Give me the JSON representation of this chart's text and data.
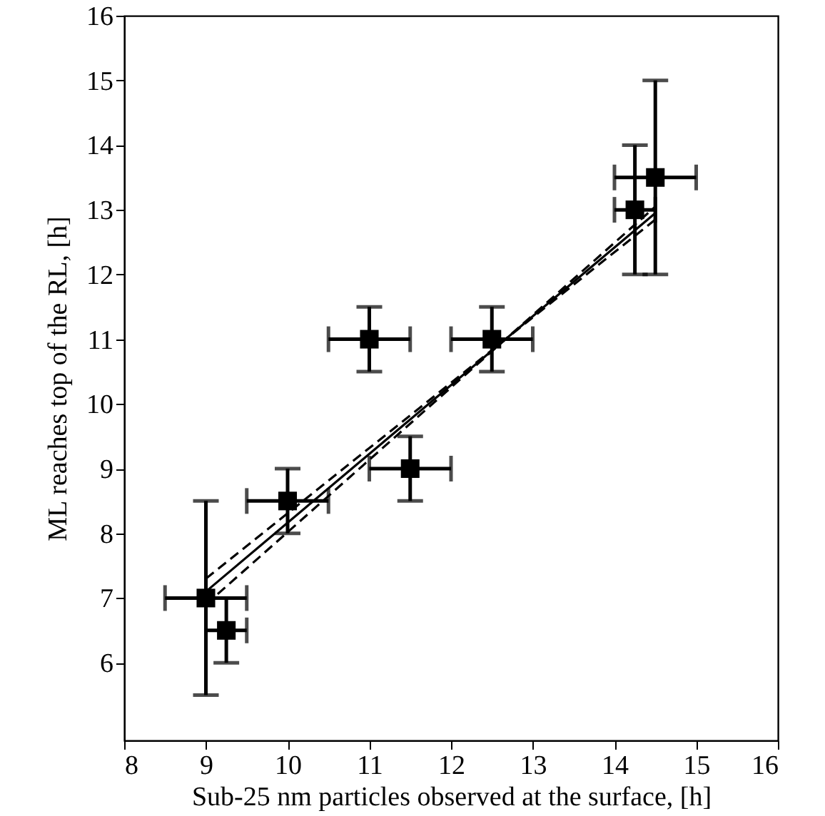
{
  "chart_data": {
    "type": "scatter",
    "xlabel": "Sub-25 nm particles observed at the surface, [h]",
    "ylabel": "ML reaches top of the RL, [h]",
    "xlim": [
      8,
      16
    ],
    "ylim": [
      4.8,
      16
    ],
    "xticks": [
      8,
      9,
      10,
      11,
      12,
      13,
      14,
      15,
      16
    ],
    "yticks": [
      6,
      7,
      8,
      9,
      10,
      11,
      12,
      13,
      14,
      15,
      16
    ],
    "grid": false,
    "series": [
      {
        "type": "scatter",
        "color": "#000000",
        "marker": "square",
        "x": [
          9,
          9.25,
          10,
          11,
          11.5,
          12.5,
          14.25,
          14.5
        ],
        "values": [
          7,
          6.5,
          8.5,
          11,
          9,
          11,
          13,
          13.5
        ],
        "errors": [
          1.5,
          0.5,
          0.5,
          0.5,
          0.5,
          0.5,
          1,
          1.5
        ],
        "xerrors": [
          0.5,
          0.25,
          0.5,
          0.5,
          0.5,
          0.5,
          0.25,
          0.5
        ]
      },
      {
        "type": "line",
        "color": "#000000",
        "line_style": "solid",
        "x": [
          9,
          14.5
        ],
        "values": [
          7.1,
          12.95
        ]
      },
      {
        "type": "line",
        "color": "#000000",
        "line_style": "dashed",
        "x": [
          9,
          14.5
        ],
        "values": [
          7.3,
          12.85
        ]
      },
      {
        "type": "line",
        "color": "#000000",
        "line_style": "dashed",
        "x": [
          9,
          14.5
        ],
        "values": [
          6.9,
          13.05
        ]
      }
    ]
  }
}
